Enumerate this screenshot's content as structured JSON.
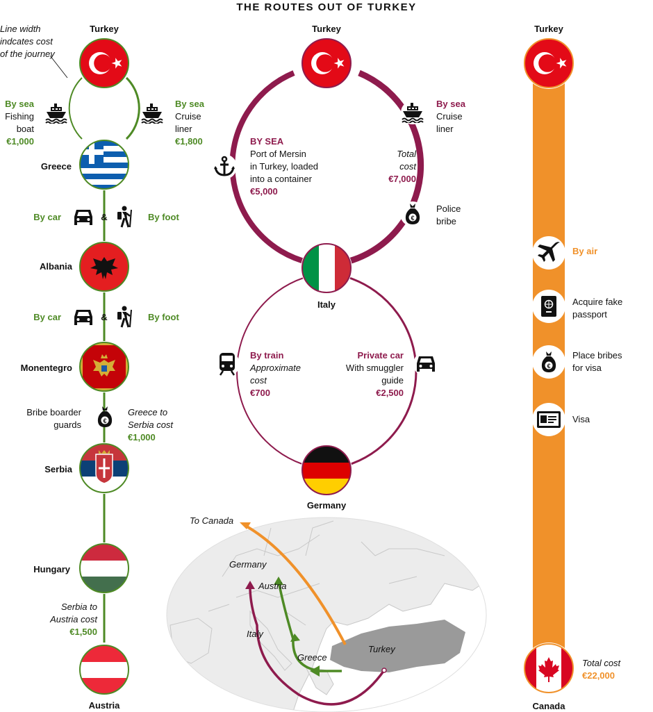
{
  "title": "THE ROUTES OUT OF TURKEY",
  "colors": {
    "green": "#4e8a25",
    "crimson": "#8e1b4d",
    "orange": "#f0912a",
    "land": "#ececec",
    "turkey_land": "#9a9a9a"
  },
  "route1": {
    "origin": "Turkey",
    "note": [
      "Line width",
      "indcates cost",
      "of the journey"
    ],
    "sea_left": {
      "mode": "By sea",
      "vehicle": [
        "Fishing",
        "boat"
      ],
      "cost": "€1,000"
    },
    "sea_right": {
      "mode": "By sea",
      "vehicle": [
        "Cruise",
        "liner"
      ],
      "cost": "€1,800"
    },
    "greece": "Greece",
    "leg2": {
      "left": "By car",
      "amp": "&",
      "right": "By foot"
    },
    "albania": "Albania",
    "leg3": {
      "left": "By car",
      "amp": "&",
      "right": "By foot"
    },
    "montenegro": "Monentegro",
    "bribe": [
      "Bribe boarder",
      "guards"
    ],
    "greece_serbia": [
      "Greece to",
      "Serbia cost"
    ],
    "greece_serbia_cost": "€1,000",
    "serbia": "Serbia",
    "hungary": "Hungary",
    "serbia_austria": [
      "Serbia to",
      "Austria cost"
    ],
    "serbia_austria_cost": "€1,500",
    "destination": "Austria"
  },
  "route2": {
    "origin": "Turkey",
    "sea_left": {
      "heading": "BY SEA",
      "desc": [
        "Port of Mersin",
        "in Turkey, loaded",
        "into a container"
      ],
      "cost": "€5,000"
    },
    "sea_right": {
      "mode": "By sea",
      "vehicle": [
        "Cruise",
        "liner"
      ]
    },
    "total": [
      "Total",
      "cost"
    ],
    "total_cost": "€7,000",
    "police": [
      "Police",
      "bribe"
    ],
    "italy": "Italy",
    "train": {
      "mode": "By train",
      "desc": [
        "Approximate",
        "cost"
      ],
      "cost": "€700"
    },
    "car": {
      "mode": "Private car",
      "desc": [
        "With smuggler",
        "guide"
      ],
      "cost": "€2,500"
    },
    "destination": "Germany"
  },
  "route3": {
    "origin": "Turkey",
    "air": "By air",
    "passport": [
      "Acquire fake",
      "passport"
    ],
    "visa_bribe": [
      "Place bribes",
      "for visa"
    ],
    "visa": "Visa",
    "total": "Total cost",
    "total_cost": "€22,000",
    "destination": "Canada"
  },
  "map": {
    "to_canada": "To Canada",
    "germany": "Germany",
    "austria": "Austria",
    "italy": "Italy",
    "greece": "Greece",
    "turkey": "Turkey"
  },
  "icons": [
    "turkey-flag-icon",
    "greece-flag-icon",
    "albania-flag-icon",
    "montenegro-flag-icon",
    "serbia-flag-icon",
    "hungary-flag-icon",
    "austria-flag-icon",
    "italy-flag-icon",
    "germany-flag-icon",
    "canada-flag-icon",
    "ship-icon",
    "car-icon",
    "hiker-icon",
    "anchor-icon",
    "money-bag-icon",
    "train-icon",
    "plane-icon",
    "passport-icon",
    "visa-card-icon"
  ]
}
